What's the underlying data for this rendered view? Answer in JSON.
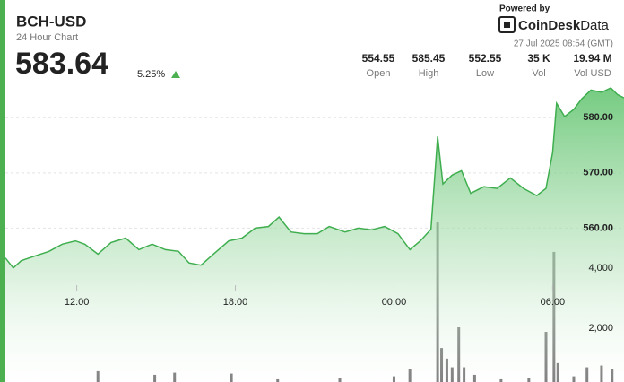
{
  "header": {
    "title": "BCH-USD",
    "subtitle": "24 Hour Chart",
    "price": "583.64",
    "change": "5.25%",
    "powered_by": "Powered by",
    "brand": "CoinDesk",
    "brand_suffix": "Data",
    "timestamp": "27 Jul 2025 08:54 (GMT)"
  },
  "stats": [
    {
      "value": "554.55",
      "label": "Open"
    },
    {
      "value": "585.45",
      "label": "High"
    },
    {
      "value": "552.55",
      "label": "Low"
    },
    {
      "value": "35 K",
      "label": "Vol"
    },
    {
      "value": "19.94 M",
      "label": "Vol USD"
    }
  ],
  "chart_data": {
    "type": "area",
    "price": {
      "color": "#3fae4f",
      "x": [
        9.3,
        9.6,
        9.9,
        10.45,
        10.95,
        11.45,
        11.95,
        12.3,
        12.8,
        13.3,
        13.85,
        14.35,
        14.85,
        15.35,
        15.85,
        16.25,
        16.7,
        17.2,
        17.75,
        18.25,
        18.75,
        19.25,
        19.65,
        20.1,
        20.6,
        21.1,
        21.55,
        22.15,
        22.65,
        23.15,
        23.65,
        24.15,
        24.6,
        25.0,
        25.4,
        25.65,
        25.85,
        26.2,
        26.55,
        26.9,
        27.4,
        27.9,
        28.4,
        28.9,
        29.4,
        29.75,
        30.0,
        30.15,
        30.45,
        30.8,
        31.1,
        31.45,
        31.85,
        32.2,
        32.45,
        32.7
      ],
      "values": [
        554.6,
        552.8,
        554.1,
        555.0,
        555.8,
        557.1,
        557.7,
        557.1,
        555.3,
        557.4,
        558.2,
        556.1,
        557.1,
        556.1,
        555.8,
        553.7,
        553.3,
        555.4,
        557.7,
        558.2,
        560.0,
        560.3,
        562.0,
        559.3,
        559.0,
        559.0,
        560.3,
        559.3,
        560.0,
        559.7,
        560.3,
        559.0,
        556.1,
        557.7,
        559.8,
        576.6,
        568.0,
        569.6,
        570.4,
        566.3,
        567.5,
        567.2,
        569.1,
        567.2,
        565.9,
        567.2,
        573.7,
        582.6,
        580.2,
        581.5,
        583.4,
        585.0,
        584.6,
        585.4,
        584.2,
        583.6
      ]
    },
    "volume": {
      "color": "#5f5f5f",
      "axis": "y2",
      "x": [
        12.8,
        14.95,
        15.7,
        17.85,
        19.6,
        21.95,
        24.0,
        24.6,
        25.65,
        25.8,
        26.0,
        26.2,
        26.45,
        26.65,
        27.05,
        28.05,
        29.1,
        29.75,
        30.05,
        30.2,
        30.8,
        31.3,
        31.85,
        32.25
      ],
      "values": [
        570,
        450,
        520,
        490,
        300,
        350,
        400,
        640,
        5520,
        1340,
        990,
        700,
        2030,
        700,
        450,
        300,
        350,
        1880,
        4540,
        840,
        400,
        700,
        760,
        630
      ]
    },
    "xlim": [
      9.3,
      32.7
    ],
    "xticks": [
      {
        "value": 12,
        "label": "12:00"
      },
      {
        "value": 18,
        "label": "18:00"
      },
      {
        "value": 24,
        "label": "00:00"
      },
      {
        "value": 30,
        "label": "06:00"
      }
    ],
    "ylim": [
      531,
      585.4
    ],
    "yticks": [
      {
        "value": 560,
        "label": "560.00"
      },
      {
        "value": 570,
        "label": "570.00"
      },
      {
        "value": 580,
        "label": "580.00"
      }
    ],
    "y2lim": [
      0,
      10000
    ],
    "y2ticks": [
      {
        "value": 2000,
        "label": "2,000"
      },
      {
        "value": 4000,
        "label": "4,000"
      }
    ],
    "grid": true
  }
}
